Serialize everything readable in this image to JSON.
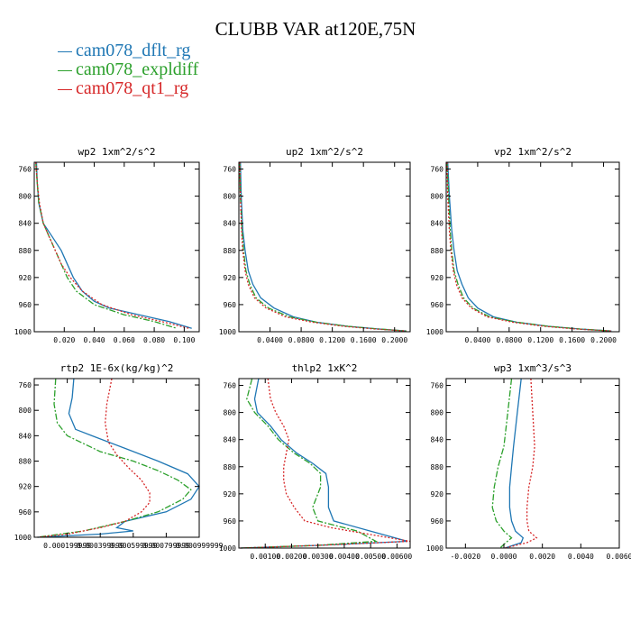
{
  "figure": {
    "title": "CLUBB VAR at120E,75N",
    "legend": [
      {
        "name": "cam078_dflt_rg",
        "color": "#1f77b4"
      },
      {
        "name": "cam078_expldiff",
        "color": "#2ca02c"
      },
      {
        "name": "cam078_qt1_rg",
        "color": "#d62728"
      }
    ]
  },
  "chart_data": [
    {
      "type": "line",
      "title": "wp2  1xm^2/s^2",
      "xlim": [
        0,
        0.11
      ],
      "ylim": [
        1000,
        750
      ],
      "xticks": [
        "0.020",
        "0.040",
        "0.060",
        "0.080",
        "0.100"
      ],
      "xtick_values": [
        0.02,
        0.04,
        0.06,
        0.08,
        0.1
      ],
      "yticks": [
        "760",
        "800",
        "840",
        "880",
        "920",
        "960",
        "1000"
      ],
      "series": [
        {
          "name": "cam078_dflt_rg",
          "color": "#1f77b4",
          "dash": "",
          "x": [
            0.0015,
            0.002,
            0.003,
            0.006,
            0.012,
            0.018,
            0.022,
            0.026,
            0.032,
            0.04,
            0.05,
            0.07,
            0.09,
            0.105
          ],
          "y": [
            750,
            780,
            810,
            840,
            860,
            880,
            900,
            920,
            940,
            955,
            965,
            975,
            985,
            995
          ]
        },
        {
          "name": "cam078_expldiff",
          "color": "#2ca02c",
          "dash": "7,2,2,2",
          "x": [
            0.001,
            0.002,
            0.003,
            0.006,
            0.01,
            0.014,
            0.018,
            0.022,
            0.028,
            0.04,
            0.06,
            0.08,
            0.095
          ],
          "y": [
            750,
            780,
            810,
            840,
            860,
            880,
            900,
            920,
            940,
            960,
            975,
            985,
            995
          ]
        },
        {
          "name": "cam078_qt1_rg",
          "color": "#d62728",
          "dash": "2,2",
          "x": [
            0.001,
            0.002,
            0.0035,
            0.006,
            0.01,
            0.014,
            0.018,
            0.024,
            0.032,
            0.045,
            0.065,
            0.085,
            0.103
          ],
          "y": [
            750,
            780,
            810,
            840,
            860,
            880,
            900,
            920,
            940,
            960,
            975,
            985,
            995
          ]
        }
      ]
    },
    {
      "type": "line",
      "title": "up2  1xm^2/s^2",
      "xlim": [
        0,
        0.22
      ],
      "ylim": [
        1000,
        750
      ],
      "xticks": [
        "0.0400",
        "0.0800",
        "0.1200",
        "0.1600",
        "0.2000"
      ],
      "xtick_values": [
        0.04,
        0.08,
        0.12,
        0.16,
        0.2
      ],
      "yticks": [
        "760",
        "800",
        "840",
        "880",
        "920",
        "960",
        "1000"
      ],
      "series": [
        {
          "name": "cam078_dflt_rg",
          "color": "#1f77b4",
          "dash": "",
          "x": [
            0.002,
            0.003,
            0.005,
            0.008,
            0.012,
            0.018,
            0.028,
            0.045,
            0.07,
            0.1,
            0.14,
            0.18,
            0.215
          ],
          "y": [
            750,
            800,
            850,
            880,
            910,
            930,
            950,
            965,
            978,
            986,
            992,
            996,
            999
          ]
        },
        {
          "name": "cam078_expldiff",
          "color": "#2ca02c",
          "dash": "7,2,2,2",
          "x": [
            0.001,
            0.002,
            0.004,
            0.006,
            0.009,
            0.014,
            0.022,
            0.038,
            0.065,
            0.1,
            0.14,
            0.18,
            0.215
          ],
          "y": [
            750,
            800,
            850,
            880,
            910,
            930,
            950,
            965,
            978,
            986,
            992,
            996,
            999
          ]
        },
        {
          "name": "cam078_qt1_rg",
          "color": "#d62728",
          "dash": "2,2",
          "x": [
            0.001,
            0.002,
            0.0035,
            0.005,
            0.008,
            0.012,
            0.02,
            0.035,
            0.06,
            0.095,
            0.135,
            0.175,
            0.215
          ],
          "y": [
            750,
            800,
            850,
            880,
            910,
            930,
            950,
            965,
            978,
            986,
            992,
            996,
            999
          ]
        }
      ]
    },
    {
      "type": "line",
      "title": "vp2  1xm^2/s^2",
      "xlim": [
        0,
        0.22
      ],
      "ylim": [
        1000,
        750
      ],
      "xticks": [
        "0.0400",
        "0.0800",
        "0.1200",
        "0.1600",
        "0.2000"
      ],
      "xtick_values": [
        0.04,
        0.08,
        0.12,
        0.16,
        0.2
      ],
      "yticks": [
        "760",
        "800",
        "840",
        "880",
        "920",
        "960",
        "1000"
      ],
      "series": [
        {
          "name": "cam078_dflt_rg",
          "color": "#1f77b4",
          "dash": "",
          "x": [
            0.002,
            0.004,
            0.007,
            0.01,
            0.014,
            0.02,
            0.028,
            0.04,
            0.06,
            0.09,
            0.13,
            0.17,
            0.21
          ],
          "y": [
            750,
            800,
            850,
            880,
            910,
            930,
            950,
            965,
            978,
            986,
            992,
            996,
            999
          ]
        },
        {
          "name": "cam078_expldiff",
          "color": "#2ca02c",
          "dash": "7,2,2,2",
          "x": [
            0.001,
            0.003,
            0.005,
            0.007,
            0.01,
            0.015,
            0.022,
            0.034,
            0.055,
            0.09,
            0.13,
            0.17,
            0.21
          ],
          "y": [
            750,
            800,
            850,
            880,
            910,
            930,
            950,
            965,
            978,
            986,
            992,
            996,
            999
          ]
        },
        {
          "name": "cam078_qt1_rg",
          "color": "#d62728",
          "dash": "2,2",
          "x": [
            0.001,
            0.002,
            0.004,
            0.006,
            0.009,
            0.013,
            0.02,
            0.032,
            0.052,
            0.085,
            0.125,
            0.165,
            0.21
          ],
          "y": [
            750,
            800,
            850,
            880,
            910,
            930,
            950,
            965,
            978,
            986,
            992,
            996,
            999
          ]
        }
      ]
    },
    {
      "type": "line",
      "title": "rtp2  1E-6x(kg/kg)^2",
      "xlim": [
        0,
        0.001
      ],
      "ylim": [
        1000,
        750
      ],
      "xticks": [
        "0.000199999",
        "0.000399999",
        "0.000599999",
        "0.000799999",
        "0.000999999"
      ],
      "xtick_values": [
        0.0002,
        0.0004,
        0.0006,
        0.0008,
        0.001
      ],
      "yticks": [
        "760",
        "800",
        "840",
        "880",
        "920",
        "960",
        "1000"
      ],
      "series": [
        {
          "name": "cam078_dflt_rg",
          "color": "#1f77b4",
          "dash": "",
          "x": [
            0.00024,
            0.00023,
            0.00021,
            0.00025,
            0.00035,
            0.00055,
            0.00075,
            0.00093,
            0.001,
            0.00095,
            0.0008,
            0.00055,
            0.0005,
            0.0006,
            0.0004,
            2e-05
          ],
          "y": [
            750,
            780,
            805,
            830,
            840,
            860,
            880,
            900,
            920,
            940,
            960,
            975,
            985,
            990,
            995,
            1000
          ]
        },
        {
          "name": "cam078_expldiff",
          "color": "#2ca02c",
          "dash": "7,2,2,2",
          "x": [
            0.00013,
            0.00012,
            0.00014,
            0.0002,
            0.00028,
            0.0004,
            0.0006,
            0.00075,
            0.00087,
            0.00095,
            0.0009,
            0.00075,
            0.00055,
            0.0003,
            2e-05
          ],
          "y": [
            750,
            790,
            820,
            840,
            850,
            865,
            880,
            895,
            910,
            925,
            940,
            960,
            975,
            990,
            1000
          ]
        },
        {
          "name": "cam078_qt1_rg",
          "color": "#d62728",
          "dash": "2,2",
          "x": [
            0.00047,
            0.00044,
            0.00043,
            0.00045,
            0.0005,
            0.00057,
            0.00065,
            0.0007,
            0.0007,
            0.00065,
            0.00055,
            0.0004,
            0.0002,
            2e-05
          ],
          "y": [
            750,
            790,
            820,
            850,
            870,
            890,
            910,
            930,
            945,
            960,
            975,
            985,
            995,
            1000
          ]
        }
      ]
    },
    {
      "type": "line",
      "title": "thlp2  1xK^2",
      "xlim": [
        0,
        0.0065
      ],
      "ylim": [
        1000,
        750
      ],
      "xticks": [
        "0.00100",
        "0.00200",
        "0.00300",
        "0.00400",
        "0.00500",
        "0.00600"
      ],
      "xtick_values": [
        0.001,
        0.002,
        0.003,
        0.004,
        0.005,
        0.006
      ],
      "yticks": [
        "760",
        "800",
        "840",
        "880",
        "920",
        "960",
        "1000"
      ],
      "series": [
        {
          "name": "cam078_dflt_rg",
          "color": "#1f77b4",
          "dash": "",
          "x": [
            0.00075,
            0.0006,
            0.0007,
            0.0012,
            0.0016,
            0.0022,
            0.0028,
            0.0033,
            0.0034,
            0.0034,
            0.0036,
            0.005,
            0.0064,
            0.003,
            5e-05
          ],
          "y": [
            750,
            780,
            800,
            820,
            840,
            860,
            875,
            890,
            910,
            940,
            960,
            975,
            990,
            996,
            1000
          ]
        },
        {
          "name": "cam078_expldiff",
          "color": "#2ca02c",
          "dash": "7,2,2,2",
          "x": [
            0.0005,
            0.0003,
            0.0006,
            0.0011,
            0.0015,
            0.0021,
            0.0027,
            0.0031,
            0.0031,
            0.0028,
            0.003,
            0.0045,
            0.0052,
            0.003,
            5e-05
          ],
          "y": [
            750,
            780,
            800,
            820,
            840,
            860,
            875,
            890,
            910,
            940,
            960,
            975,
            990,
            996,
            1000
          ]
        },
        {
          "name": "cam078_qt1_rg",
          "color": "#d62728",
          "dash": "2,2",
          "x": [
            0.0011,
            0.0012,
            0.0014,
            0.0017,
            0.0019,
            0.0018,
            0.0017,
            0.0017,
            0.0018,
            0.0021,
            0.0025,
            0.0035,
            0.005,
            0.0065,
            0.003,
            5e-05
          ],
          "y": [
            750,
            780,
            800,
            820,
            840,
            860,
            880,
            900,
            920,
            940,
            960,
            970,
            980,
            990,
            996,
            1000
          ]
        }
      ]
    },
    {
      "type": "line",
      "title": "wp3  1xm^3/s^3",
      "xlim": [
        -0.003,
        0.006
      ],
      "ylim": [
        1000,
        750
      ],
      "xticks": [
        "-0.0020",
        "0.0000",
        "0.0020",
        "0.0040",
        "0.0060"
      ],
      "xtick_values": [
        -0.002,
        0,
        0.002,
        0.004,
        0.006
      ],
      "yticks": [
        "760",
        "800",
        "840",
        "880",
        "920",
        "960",
        "1000"
      ],
      "series": [
        {
          "name": "cam078_dflt_rg",
          "color": "#1f77b4",
          "dash": "",
          "x": [
            0.0009,
            0.0007,
            0.0005,
            0.0004,
            0.0003,
            0.0003,
            0.0004,
            0.0006,
            0.001,
            0.0009,
            5e-05
          ],
          "y": [
            750,
            800,
            850,
            880,
            910,
            940,
            960,
            975,
            985,
            992,
            1000
          ]
        },
        {
          "name": "cam078_expldiff",
          "color": "#2ca02c",
          "dash": "7,2,2,2",
          "x": [
            0.0004,
            0.0002,
            0.0,
            -0.0003,
            -0.0005,
            -0.0006,
            -0.0004,
            0.0,
            0.0004,
            0.0001,
            -0.0002
          ],
          "y": [
            750,
            800,
            850,
            880,
            910,
            940,
            960,
            975,
            985,
            992,
            1000
          ]
        },
        {
          "name": "cam078_qt1_rg",
          "color": "#d62728",
          "dash": "2,2",
          "x": [
            0.0014,
            0.0015,
            0.0016,
            0.0015,
            0.0013,
            0.0012,
            0.0012,
            0.0013,
            0.0017,
            0.0012,
            5e-05
          ],
          "y": [
            750,
            800,
            850,
            880,
            910,
            940,
            960,
            975,
            985,
            992,
            1000
          ]
        }
      ]
    }
  ]
}
